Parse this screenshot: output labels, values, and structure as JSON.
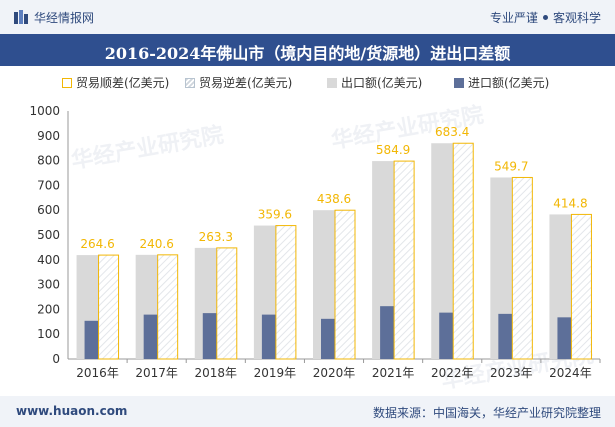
{
  "header": {
    "brand": "华经情报网",
    "tagline_left": "专业严谨",
    "tagline_right": "客观科学"
  },
  "title": "2016-2024年佛山市（境内目的地/货源地）进出口差额",
  "legend": {
    "surplus": "贸易顺差(亿美元)",
    "deficit": "贸易逆差(亿美元)",
    "export": "出口额(亿美元)",
    "import": "进口额(亿美元)"
  },
  "watermark": "华经产业研究院",
  "footer": {
    "site": "www.huaon.com",
    "source": "数据来源：中国海关，华经产业研究院整理"
  },
  "colors": {
    "export": "#d9d9d9",
    "import": "#5d6f99",
    "surplus_border": "#f2b705",
    "label": "#f2b705",
    "title_bg": "#2f4f8f"
  },
  "chart_data": {
    "type": "bar",
    "categories": [
      "2016年",
      "2017年",
      "2018年",
      "2019年",
      "2020年",
      "2021年",
      "2022年",
      "2023年",
      "2024年"
    ],
    "series": [
      {
        "name": "出口额(亿美元)",
        "values": [
          419,
          420,
          448,
          538,
          600,
          798,
          870,
          732,
          583
        ]
      },
      {
        "name": "进口额(亿美元)",
        "values": [
          154,
          179,
          185,
          179,
          162,
          213,
          187,
          182,
          168
        ]
      },
      {
        "name": "贸易顺差(亿美元)",
        "values": [
          264.6,
          240.6,
          263.3,
          359.6,
          438.6,
          584.9,
          683.4,
          549.7,
          414.8
        ]
      }
    ],
    "data_labels": [
      "264.6",
      "240.6",
      "263.3",
      "359.6",
      "438.6",
      "584.9",
      "683.4",
      "549.7",
      "414.8"
    ],
    "yticks": [
      "0",
      "100",
      "200",
      "300",
      "400",
      "500",
      "600",
      "700",
      "800",
      "900",
      "1000"
    ],
    "ylim": [
      0,
      1000
    ],
    "grid": false
  }
}
